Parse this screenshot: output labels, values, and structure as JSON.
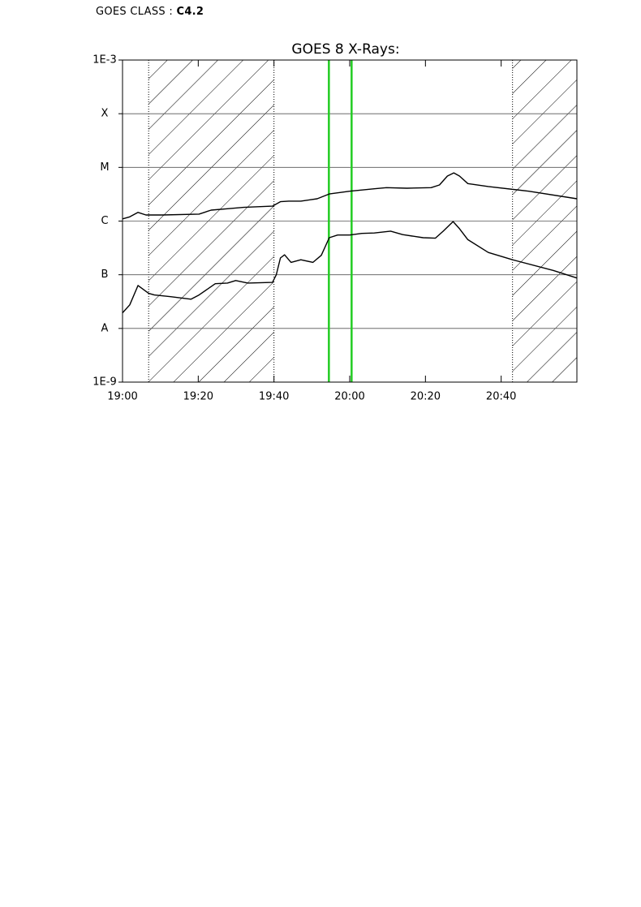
{
  "header": {
    "label": "GOES CLASS :",
    "value": "C4.2"
  },
  "chart_data": {
    "type": "line",
    "title": "GOES 8 X-Rays:",
    "yscale": "log",
    "grid": true,
    "xlim": [
      1140,
      1260
    ],
    "xticks": [
      {
        "value": 1140,
        "label": "19:00"
      },
      {
        "value": 1160,
        "label": "19:20"
      },
      {
        "value": 1180,
        "label": "19:40"
      },
      {
        "value": 1200,
        "label": "20:00"
      },
      {
        "value": 1220,
        "label": "20:20"
      },
      {
        "value": 1240,
        "label": "20:40"
      }
    ],
    "ylim": [
      1e-09,
      0.001
    ],
    "yticks": [
      {
        "value": 0.001,
        "label": "1E-3"
      },
      {
        "value": 0.0001,
        "label": "X"
      },
      {
        "value": 1e-05,
        "label": "M"
      },
      {
        "value": 1e-06,
        "label": "C"
      },
      {
        "value": 1e-07,
        "label": "B"
      },
      {
        "value": 1e-08,
        "label": "A"
      },
      {
        "value": 1e-09,
        "label": "1E-9"
      }
    ],
    "shaded_intervals": [
      [
        1146.9,
        1180
      ],
      [
        1243,
        1260
      ]
    ],
    "markers": [
      1194.5,
      1200.5
    ],
    "marker_color": "#22cc22",
    "series": [
      {
        "color": "#000000",
        "x": [
          1140,
          1141.9,
          1144.1,
          1146.2,
          1150.5,
          1160.2,
          1163.4,
          1167.7,
          1172,
          1179.6,
          1181.7,
          1183.9,
          1187.1,
          1191.4,
          1194.6,
          1200,
          1206.5,
          1209.7,
          1215.1,
          1221.5,
          1223.7,
          1225.8,
          1227.5,
          1229,
          1231.2,
          1236.6,
          1247.3,
          1260
        ],
        "values": [
          1.1e-06,
          1.2e-06,
          1.45e-06,
          1.3e-06,
          1.3e-06,
          1.35e-06,
          1.6e-06,
          1.7e-06,
          1.8e-06,
          1.9e-06,
          2.3e-06,
          2.35e-06,
          2.35e-06,
          2.6e-06,
          3.2e-06,
          3.6e-06,
          4e-06,
          4.2e-06,
          4.1e-06,
          4.2e-06,
          4.7e-06,
          6.9e-06,
          7.9e-06,
          6.9e-06,
          5e-06,
          4.4e-06,
          3.6e-06,
          2.6e-06
        ]
      },
      {
        "color": "#000000",
        "x": [
          1140,
          1141.9,
          1144.1,
          1146.9,
          1148.4,
          1152.7,
          1158.1,
          1160.2,
          1164.5,
          1167.7,
          1169.9,
          1173.1,
          1179.6,
          1180.6,
          1181.7,
          1182.8,
          1184.5,
          1187.1,
          1190.3,
          1192.5,
          1194.6,
          1196.8,
          1200,
          1203.2,
          1206.5,
          1210.8,
          1214,
          1219.4,
          1222.6,
          1224.7,
          1227.3,
          1229,
          1231.2,
          1236.6,
          1243,
          1253.8,
          1260
        ],
        "values": [
          1.95e-08,
          2.75e-08,
          6.3e-08,
          4.5e-08,
          4.2e-08,
          3.9e-08,
          3.5e-08,
          4.2e-08,
          6.8e-08,
          7e-08,
          7.8e-08,
          7e-08,
          7.2e-08,
          1e-07,
          2.05e-07,
          2.35e-07,
          1.7e-07,
          1.9e-07,
          1.7e-07,
          2.3e-07,
          4.9e-07,
          5.5e-07,
          5.5e-07,
          5.9e-07,
          6e-07,
          6.5e-07,
          5.6e-07,
          4.9e-07,
          4.8e-07,
          6.5e-07,
          9.8e-07,
          7.2e-07,
          4.5e-07,
          2.6e-07,
          1.9e-07,
          1.2e-07,
          8.7e-08
        ]
      }
    ]
  }
}
